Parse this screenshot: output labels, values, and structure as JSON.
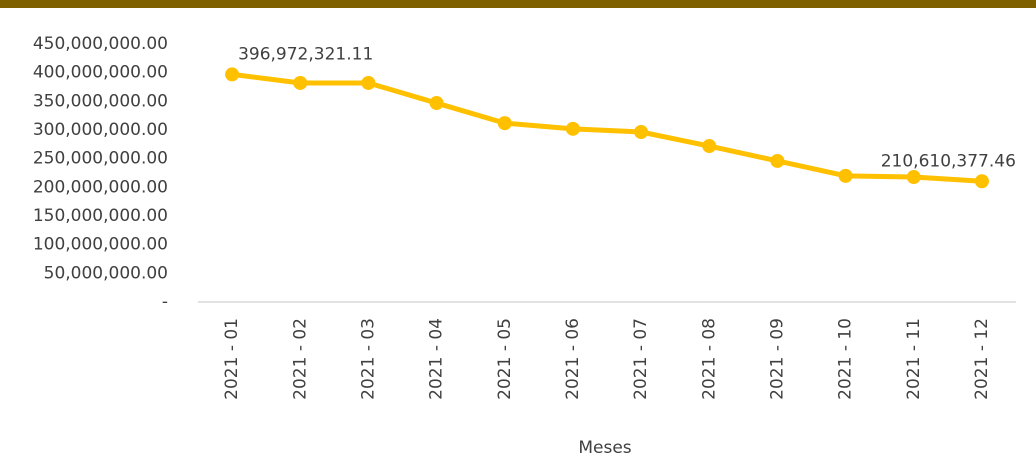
{
  "chart_data": {
    "type": "line",
    "x_label": "Meses",
    "categories": [
      "2021 - 01",
      "2021 - 02",
      "2021 - 03",
      "2021 - 04",
      "2021 - 05",
      "2021 - 06",
      "2021 - 07",
      "2021 - 08",
      "2021 - 09",
      "2021 - 10",
      "2021 - 11",
      "2021 - 12"
    ],
    "values": [
      396972321.11,
      382000000,
      382000000,
      347000000,
      312000000,
      302000000,
      296500000,
      272000000,
      246000000,
      220000000,
      218000000,
      210610377.46
    ],
    "value_labels": [
      "396,972,321.11",
      null,
      null,
      null,
      null,
      null,
      null,
      null,
      null,
      null,
      null,
      "210,610,377.46"
    ],
    "color": "#ffc000",
    "ylim": [
      0,
      450000000
    ],
    "yticks": [
      {
        "value": 0,
        "label": "-"
      },
      {
        "value": 50000000,
        "label": "50,000,000.00"
      },
      {
        "value": 100000000,
        "label": "100,000,000.00"
      },
      {
        "value": 150000000,
        "label": "150,000,000.00"
      },
      {
        "value": 200000000,
        "label": "200,000,000.00"
      },
      {
        "value": 250000000,
        "label": "250,000,000.00"
      },
      {
        "value": 300000000,
        "label": "300,000,000.00"
      },
      {
        "value": 350000000,
        "label": "350,000,000.00"
      },
      {
        "value": 400000000,
        "label": "400,000,000.00"
      },
      {
        "value": 450000000,
        "label": "450,000,000.00"
      }
    ],
    "grid": false
  }
}
